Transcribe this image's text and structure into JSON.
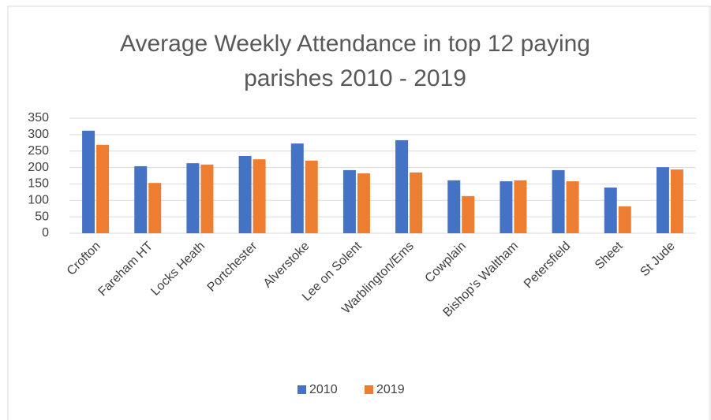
{
  "chart_data": {
    "type": "bar",
    "title": "Average Weekly Attendance in top 12 paying parishes 2010 - 2019",
    "categories": [
      "Crofton",
      "Fareham HT",
      "Locks Heath",
      "Portchester",
      "Alverstoke",
      "Lee on Solent",
      "Warblington/Ems",
      "Cowplain",
      "Bishop's Waltham",
      "Petersfield",
      "Sheet",
      "St Jude"
    ],
    "series": [
      {
        "name": "2010",
        "color": "#4472c4",
        "values": [
          312,
          204,
          213,
          235,
          273,
          192,
          283,
          161,
          158,
          192,
          139,
          201
        ]
      },
      {
        "name": "2019",
        "color": "#ed7d31",
        "values": [
          269,
          153,
          209,
          225,
          221,
          182,
          185,
          113,
          161,
          158,
          82,
          194
        ]
      }
    ],
    "ylim": [
      0,
      350
    ],
    "yticks": [
      0,
      50,
      100,
      150,
      200,
      250,
      300,
      350
    ],
    "grid": true,
    "legend": "bottom"
  }
}
